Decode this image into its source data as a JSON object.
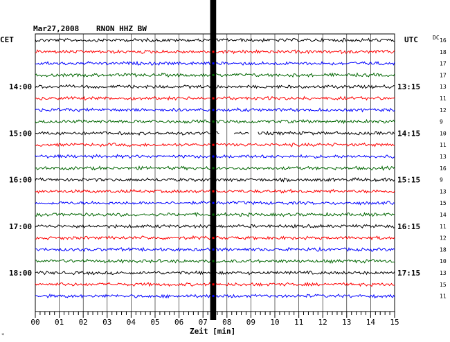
{
  "header": {
    "date": "Mar27,2008",
    "station": "RNON HHZ BW",
    "left_zone": "CET",
    "right_zone": "UTC",
    "dc_label": "DC"
  },
  "chart_data": {
    "type": "line",
    "title": "Mar27,2008   RNON HHZ BW",
    "xlabel": "Zeit [min]",
    "xlim": [
      0,
      15
    ],
    "x_ticks": [
      "00",
      "01",
      "02",
      "03",
      "04",
      "05",
      "06",
      "07",
      "08",
      "09",
      "10",
      "11",
      "12",
      "13",
      "14",
      "15"
    ],
    "trace_colors": [
      "#000000",
      "#ff0000",
      "#0000ff",
      "#006600"
    ],
    "left_time_labels": [
      "14:00",
      "15:00",
      "16:00",
      "17:00",
      "18:00"
    ],
    "right_time_labels": [
      "13:15",
      "14:15",
      "15:15",
      "16:15",
      "17:15"
    ],
    "dc_values": [
      "16",
      "18",
      "17",
      "17",
      "13",
      "11",
      "12",
      "9",
      "10",
      "11",
      "13",
      "16",
      "9",
      "13",
      "15",
      "14",
      "11",
      "12",
      "18",
      "10",
      "13",
      "15",
      "11"
    ],
    "event": {
      "start_min": 7.3,
      "end_min": 7.55,
      "trace_from": 0,
      "trace_to": 23
    },
    "gap": {
      "trace": 8,
      "segments": [
        [
          7.7,
          8.3
        ],
        [
          8.95,
          9.3
        ]
      ]
    },
    "footnote": "*"
  }
}
